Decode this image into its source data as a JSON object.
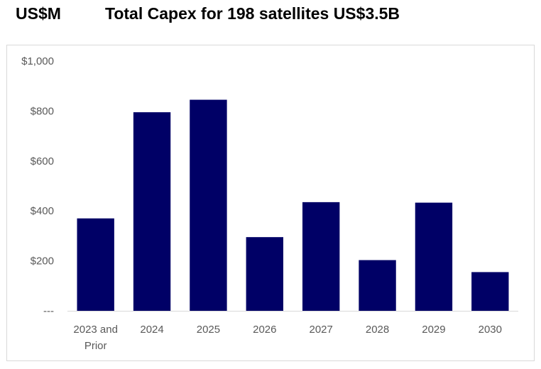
{
  "header": {
    "unit_label": "US$M",
    "title": "Total Capex for 198 satellites US$3.5B"
  },
  "chart_data": {
    "type": "bar",
    "title": "Total Capex for 198 satellites US$3.5B",
    "ylabel": "US$M",
    "xlabel": "",
    "categories": [
      "2023 and Prior",
      "2024",
      "2025",
      "2026",
      "2027",
      "2028",
      "2029",
      "2030"
    ],
    "category_lines": [
      [
        "2023 and",
        "Prior"
      ],
      [
        "2024"
      ],
      [
        "2025"
      ],
      [
        "2026"
      ],
      [
        "2027"
      ],
      [
        "2028"
      ],
      [
        "2029"
      ],
      [
        "2030"
      ]
    ],
    "values": [
      370,
      795,
      845,
      295,
      435,
      203,
      433,
      155
    ],
    "ylim": [
      0,
      1000
    ],
    "yticks": [
      0,
      200,
      400,
      600,
      800,
      1000
    ],
    "ytick_labels": [
      "---",
      "$200",
      "$400",
      "$600",
      "$800",
      "$1,000"
    ],
    "bar_color": "#000066",
    "grid": false,
    "legend": "none"
  }
}
